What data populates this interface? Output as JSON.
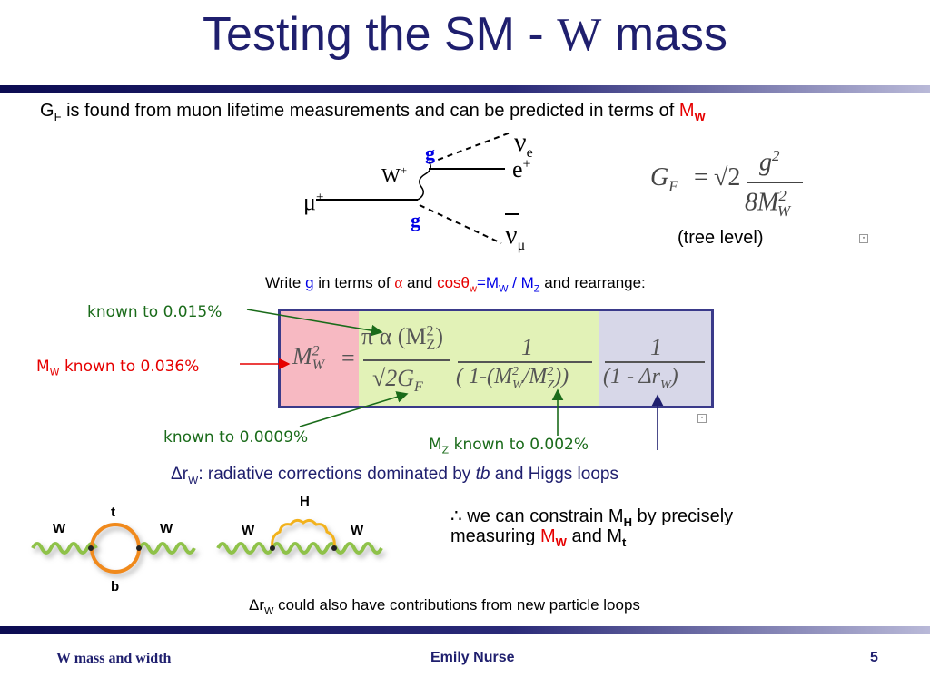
{
  "slide": {
    "title_main": "Testing the SM - ",
    "title_w": "W",
    "title_end": " mass",
    "intro": {
      "g": "G",
      "g_sub": "F",
      "text": " is found from muon lifetime measurements and can be predicted in terms of ",
      "m": "M",
      "m_sub": "W"
    },
    "feynman": {
      "mu": "μ",
      "mu_sup": "+",
      "w": "W",
      "w_sup": "+",
      "g_top": "g",
      "g_bottom": "g",
      "nu_e": "ν",
      "nu_e_sub": "e",
      "e": "e",
      "e_sup": "+",
      "nu_mu": "ν",
      "nu_mu_sub": "μ"
    },
    "gf_formula": {
      "lhs": "G",
      "lhs_sub": "F",
      "eq": "=",
      "sqrt": "√2",
      "num": "g",
      "num_sup": "2",
      "den": "8M",
      "den_sup": "2",
      "den_sub": "W"
    },
    "tree_level": "(tree level)",
    "write_line": {
      "t1": "Write ",
      "g": "g",
      "t2": " in terms of ",
      "alpha": "α",
      "t3": " and ",
      "cos": "cosθ",
      "cos_sub": "w",
      "t4": "=M",
      "t4_sub": "W",
      "t5": " / M",
      "t5_sub": "Z",
      "t6": " and rearrange:"
    },
    "main_formula": {
      "lhs": "M",
      "lhs_sup": "2",
      "lhs_sub": "W",
      "eq": "=",
      "f1_num": "π α (M",
      "f1_num_sup": "2",
      "f1_num_sub": "Z",
      "f1_num_end": ")",
      "f1_den": "√2G",
      "f1_den_sub": "F",
      "f2_num": "1",
      "f2_den_a": "( 1-(M",
      "f2_den_a_sup": "2",
      "f2_den_a_sub": "W",
      "f2_den_b": "/M",
      "f2_den_b_sup": "2",
      "f2_den_b_sub": "Z",
      "f2_den_end": "))",
      "f3_num": "1",
      "f3_den": "(1 - Δr",
      "f3_den_sub": "W",
      "f3_den_end": ")"
    },
    "annotations": {
      "alpha_known": "known to 0.015%",
      "mw_known_m": "M",
      "mw_known_sub": "W",
      "mw_known_text": " known to 0.036%",
      "gf_known": "known to 0.0009%",
      "mz_known_m": "M",
      "mz_known_sub": "Z",
      "mz_known_text": " known to 0.002%"
    },
    "delta_r": {
      "d": "Δr",
      "sub": "W",
      "t1": ":  radiative corrections dominated by ",
      "tb": "tb",
      "t2": " and Higgs loops"
    },
    "loops": {
      "left_w1": "W",
      "left_w2": "W",
      "left_t": "t",
      "left_b": "b",
      "right_h": "H",
      "right_w1": "W",
      "right_w2": "W"
    },
    "constrain": {
      "therefore": "∴",
      "t1": " we can constrain M",
      "h": "H",
      "t2": " by precisely",
      "t3": "measuring ",
      "m": "M",
      "w": "W",
      "t4": " and M",
      "t": "t"
    },
    "new_loops": {
      "d": "Δr",
      "sub": "W",
      "text": " could also have contributions from new particle loops"
    },
    "footer": {
      "left": "W mass and width",
      "center": "Emily Nurse",
      "page": "5"
    },
    "colors": {
      "title": "#1f1f6e",
      "red_box": "#f7b9c2",
      "green_box": "#e2f2b7",
      "purple_box": "#d7d7e8",
      "annotation_green": "#1a6b1a",
      "accent_red": "#e60000",
      "accent_blue": "#0000e6"
    }
  }
}
